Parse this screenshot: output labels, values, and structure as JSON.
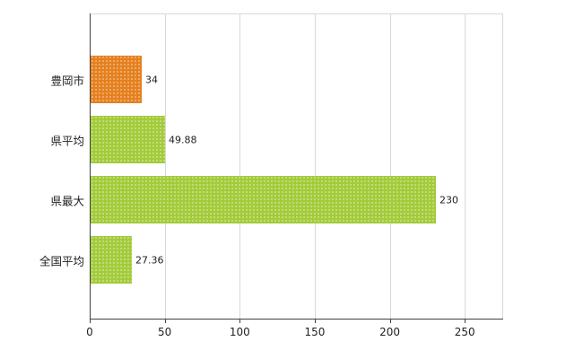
{
  "chart_data": {
    "type": "bar",
    "orientation": "horizontal",
    "title": "",
    "xlabel": "",
    "ylabel": "",
    "categories": [
      "豊岡市",
      "県平均",
      "県最大",
      "全国平均"
    ],
    "values": [
      34,
      49.88,
      230,
      27.36
    ],
    "value_labels": [
      "34",
      "49.88",
      "230",
      "27.36"
    ],
    "bar_colors": [
      "#e5801f",
      "#a3cb3a",
      "#a3cb3a",
      "#a3cb3a"
    ],
    "x_tick_values": [
      0,
      50,
      100,
      150,
      200,
      250
    ],
    "x_tick_labels": [
      "0",
      "50",
      "100",
      "150",
      "200",
      "250"
    ],
    "xlim": [
      0,
      275
    ],
    "grid": true,
    "legend": false
  },
  "colors": {
    "bar_orange": "#e5801f",
    "bar_green": "#a3cb3a",
    "grid": "#d9d9d9",
    "axis": "#404040",
    "background": "#ffffff",
    "text": "#222222"
  }
}
